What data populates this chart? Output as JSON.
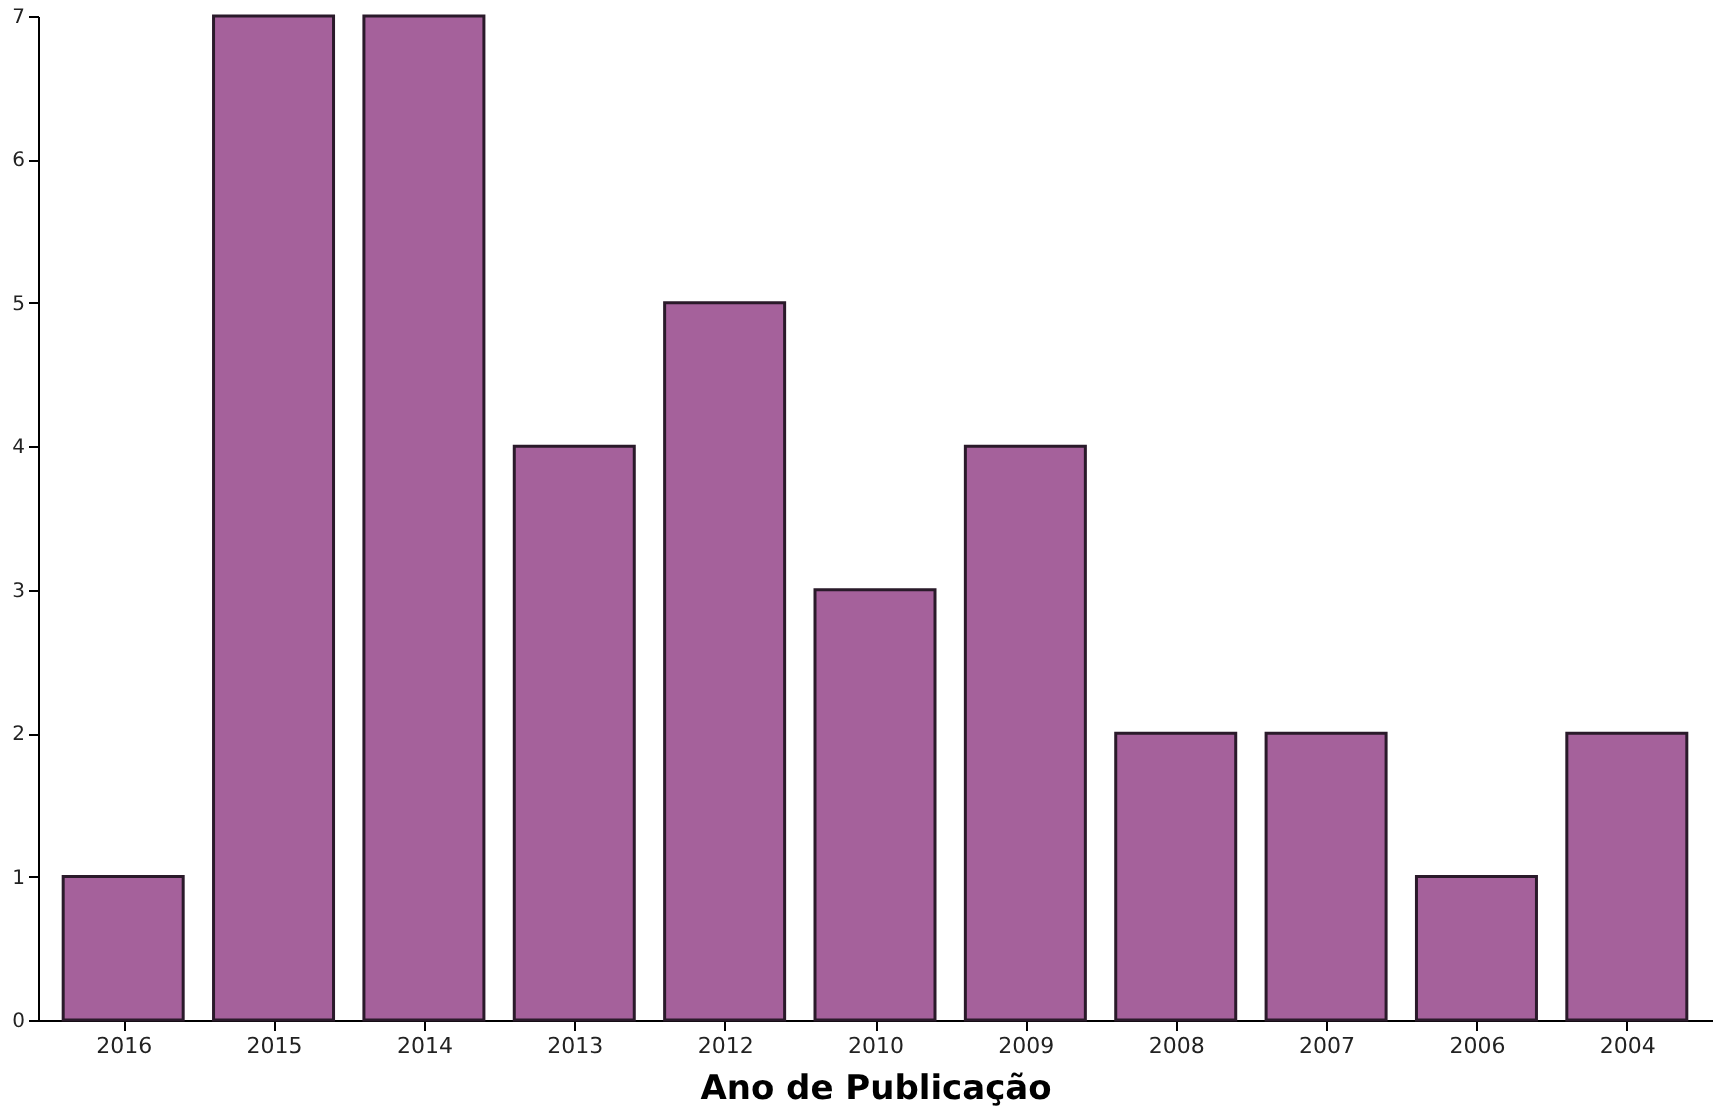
{
  "chart_data": {
    "type": "bar",
    "xlabel": "Ano de Publicação",
    "categories": [
      "2016",
      "2015",
      "2014",
      "2013",
      "2012",
      "2010",
      "2009",
      "2008",
      "2007",
      "2006",
      "2004"
    ],
    "values": [
      1,
      7,
      7,
      4,
      5,
      3,
      4,
      2,
      2,
      1,
      2
    ],
    "color": "#a5619b",
    "ylim": [
      0,
      7
    ],
    "yticks": [
      0,
      1,
      2,
      3,
      4,
      5,
      6,
      7
    ],
    "grid": false
  }
}
